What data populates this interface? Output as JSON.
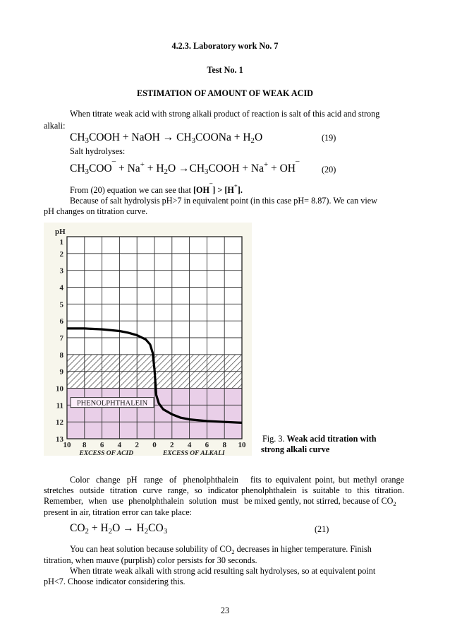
{
  "headings": {
    "section": "4.2.3. Laboratory work No. 7",
    "test": "Test No. 1",
    "title": "ESTIMATION OF AMOUNT OF WEAK ACID"
  },
  "intro": {
    "line1": "When titrate weak acid with strong alkali product of reaction is salt of this acid and strong",
    "line2": "alkali:"
  },
  "eq19": {
    "a": "CH",
    "a_sub": "3",
    "b": "COOH + NaOH → CH",
    "b_sub": "3",
    "c": "COONa + H",
    "c_sub": "2",
    "d": "O",
    "number": "(19)"
  },
  "salt_line": "Salt hydrolyses:",
  "eq20": {
    "a": "CH",
    "a_sub": "3",
    "b": "COO",
    "b_sup": "¯",
    "c": " + Na",
    "c_sup": "+",
    "d": " + H",
    "d_sub": "2",
    "e": "O →CH",
    "e_sub": "3",
    "f": "COOH + Na",
    "f_sup": "+",
    "g": " + OH",
    "g_sup": "¯",
    "number": "(20)"
  },
  "from_line": {
    "text": "From (20) equation we can see that ",
    "b1": "[OH",
    "b1_sup": "¯",
    "b2": "] > [H",
    "b2_sup": "+",
    "b3": "]."
  },
  "hydrolysis": {
    "line1": "Because of salt hydrolysis pH>7 in equivalent point (in this case pH= 8.87). We can view",
    "line2": "pH changes on titration curve."
  },
  "figure": {
    "caption_prefix": "Fig. 3. ",
    "caption_bold_1": "Weak acid titration with",
    "caption_bold_2": "strong alkali curve"
  },
  "chart_data": {
    "type": "line",
    "ylabel": "pH",
    "y_ticks": [
      "1",
      "2",
      "3",
      "4",
      "5",
      "6",
      "7",
      "8",
      "9",
      "10",
      "11",
      "12",
      "13"
    ],
    "ylim": [
      1,
      13
    ],
    "y_inverted": true,
    "x_ticks": [
      "10",
      "8",
      "6",
      "4",
      "2",
      "0",
      "2",
      "4",
      "6",
      "8",
      "10"
    ],
    "x_left_label": "EXCESS OF ACID",
    "x_right_label": "EXCESS OF ALKALI",
    "grid": true,
    "indicator_band": {
      "label": "PHENOLPHTHALEIN",
      "from_pH": 8,
      "to_pH": 10,
      "color": "#e9cfe8"
    },
    "region_below_band": {
      "from_pH": 10,
      "to_pH": 13,
      "color": "#e9cfe8"
    },
    "series": [
      {
        "x": [
          -10,
          -8,
          -6,
          -4,
          -3,
          -2,
          -1,
          -0.5,
          -0.2,
          0,
          0.2,
          0.5,
          1,
          2,
          3,
          4,
          6,
          8,
          10
        ],
        "values": [
          6.45,
          6.45,
          6.5,
          6.6,
          6.7,
          6.85,
          7.1,
          7.4,
          7.9,
          8.87,
          10.4,
          10.9,
          11.25,
          11.55,
          11.75,
          11.85,
          11.95,
          12.0,
          12.05
        ]
      }
    ]
  },
  "color_change": {
    "line1_left": "Color change pH range of phenolphthalein",
    "line1_right": "fits to equivalent point, but methyl orange",
    "line2_left": "stretches outside titration curve range, so indicator",
    "line2_right": "phenolphthalein is suitable to this titration.",
    "line3_left": "Remember, when use phenolphthalein solution must",
    "line3_right": "be mixed gently, not stirred, because of CO",
    "line3_sub": "2",
    "line4": "present in air, titration error can take place:"
  },
  "eq21": {
    "a": "CO",
    "a_sub": "2",
    "b": " + H",
    "b_sub": "2",
    "c": "O → H",
    "c_sub": "2",
    "d": "CO",
    "d_sub": "3",
    "number": "(21)"
  },
  "heat": {
    "line1_a": "You can heat solution because solubility of CO",
    "line1_sub": "2",
    "line1_b": " decreases in higher temperature. Finish",
    "line2": "titration, when mauve (purplish) color persists for 30 seconds.",
    "line3": "When titrate weak alkali with strong acid resulting salt hydrolyses, so at equivalent point",
    "line4": "pH<7. Choose indicator considering this."
  },
  "page_number": "23"
}
